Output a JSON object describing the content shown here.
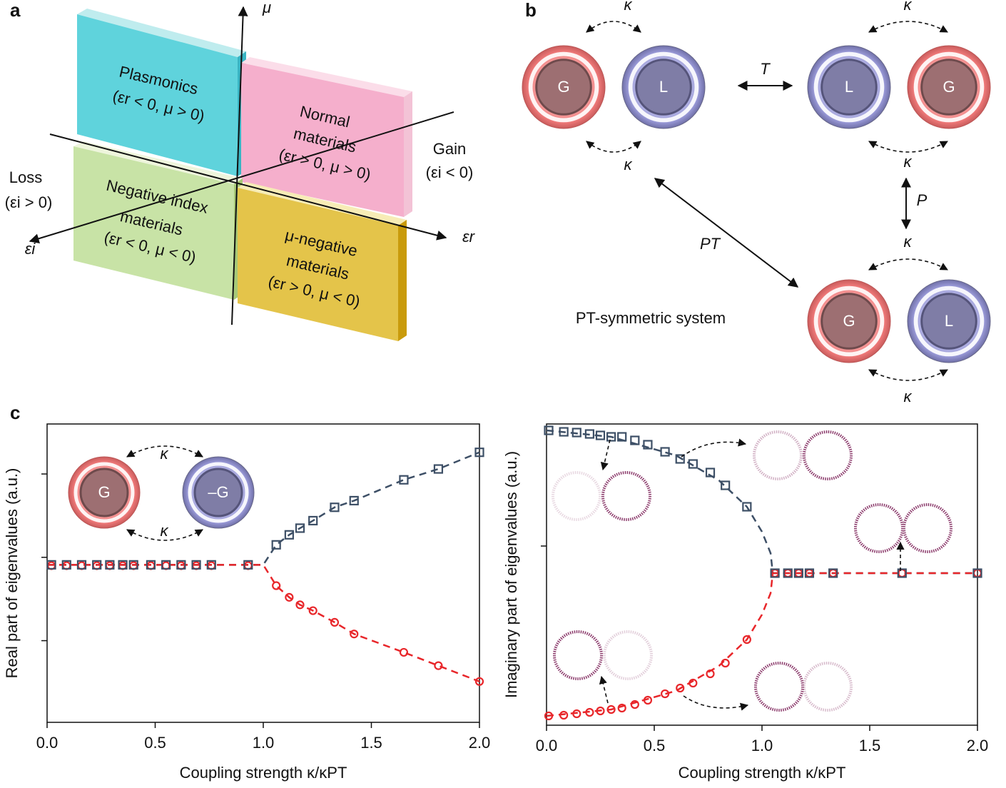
{
  "panel_a": {
    "label": "a",
    "mu_axis": "μ",
    "er_axis": "εr",
    "ei_axis": "εi",
    "loss": [
      "Loss",
      "(εi > 0)"
    ],
    "gain": [
      "Gain",
      "(εi < 0)"
    ],
    "quadrants": [
      {
        "lines": [
          "Plasmonics",
          "(εr < 0, μ > 0)"
        ]
      },
      {
        "lines": [
          "Normal",
          "materials",
          "(εr > 0, μ > 0)"
        ]
      },
      {
        "lines": [
          "Negative index",
          "materials",
          "(εr < 0, μ < 0)"
        ]
      },
      {
        "lines": [
          "μ-negative",
          "materials",
          "(εr > 0, μ < 0)"
        ]
      }
    ]
  },
  "panel_b": {
    "label": "b",
    "resonators": [
      "G",
      "L",
      "L",
      "G",
      "G",
      "L"
    ],
    "couplings": [
      "κ",
      "κ",
      "κ",
      "κ",
      "κ",
      "κ"
    ],
    "operations": [
      "T",
      "P",
      "PT"
    ],
    "caption": "PT-symmetric system"
  },
  "panel_c": {
    "label": "c"
  },
  "chart_data": [
    {
      "type": "scatter",
      "y_label": "Real part of eigenvalues (a.u.)",
      "x_label": "Coupling strength κ/κPT",
      "xlim": [
        0,
        2.0
      ],
      "xticks": [
        {
          "value": 0,
          "label": "0.0"
        },
        0.5,
        {
          "value": 1,
          "label": "1.0"
        },
        1.5,
        {
          "value": 2,
          "label": "2.0"
        }
      ],
      "ylim": [
        -1.98,
        1.6
      ],
      "yticks": [
        -1,
        0,
        1
      ],
      "annotations": [
        "G",
        "–G",
        "κ",
        "κ"
      ],
      "series": [
        {
          "marker": "none",
          "line": "dashed",
          "color": "#3d4f66",
          "x": [
            0,
            0.5,
            1.0,
            1.06,
            1.12,
            1.17,
            1.23,
            1.33,
            1.42,
            1.65,
            1.81,
            2.0
          ],
          "values": [
            -0.09,
            -0.09,
            -0.09,
            0.15,
            0.27,
            0.35,
            0.44,
            0.6,
            0.68,
            0.93,
            1.06,
            1.26
          ]
        },
        {
          "marker": "none",
          "line": "dashed",
          "color": "#e8262a",
          "x": [
            0,
            0.5,
            1.0,
            1.06,
            1.12,
            1.17,
            1.23,
            1.33,
            1.42,
            1.65,
            1.81,
            2.0
          ],
          "values": [
            -0.09,
            -0.09,
            -0.09,
            -0.34,
            -0.48,
            -0.57,
            -0.64,
            -0.78,
            -0.92,
            -1.14,
            -1.3,
            -1.49
          ]
        },
        {
          "marker": "circle",
          "line": "none",
          "color": "#e8262a",
          "x": [
            0.02,
            0.09,
            0.16,
            0.23,
            0.29,
            0.35,
            0.4,
            0.48,
            0.55,
            0.62,
            0.69,
            0.76,
            0.93,
            1.06,
            1.12,
            1.17,
            1.23,
            1.33,
            1.42,
            1.65,
            1.81,
            2.0
          ],
          "values": [
            -0.1,
            -0.1,
            -0.1,
            -0.1,
            -0.1,
            -0.1,
            -0.1,
            -0.1,
            -0.1,
            -0.1,
            -0.1,
            -0.1,
            -0.1,
            -0.34,
            -0.48,
            -0.57,
            -0.64,
            -0.78,
            -0.92,
            -1.14,
            -1.3,
            -1.49
          ]
        },
        {
          "marker": "square",
          "line": "none",
          "color": "#3d4f66",
          "x": [
            0.02,
            0.09,
            0.16,
            0.23,
            0.29,
            0.35,
            0.4,
            0.48,
            0.55,
            0.62,
            0.69,
            0.76,
            0.93,
            1.06,
            1.12,
            1.17,
            1.23,
            1.33,
            1.42,
            1.65,
            1.81,
            2.0
          ],
          "values": [
            -0.09,
            -0.09,
            -0.09,
            -0.09,
            -0.09,
            -0.09,
            -0.09,
            -0.09,
            -0.09,
            -0.09,
            -0.09,
            -0.09,
            -0.09,
            0.15,
            0.27,
            0.35,
            0.44,
            0.6,
            0.68,
            0.93,
            1.06,
            1.26
          ]
        }
      ]
    },
    {
      "type": "scatter",
      "y_label": "Imaginary part of eigenvalues (a.u.)",
      "x_label": "Coupling strength κ/κPT",
      "xlim": [
        0,
        2.0
      ],
      "xticks": [
        {
          "value": 0,
          "label": "0.0"
        },
        0.5,
        {
          "value": 1,
          "label": "1.0"
        },
        1.5,
        {
          "value": 2,
          "label": "2.0"
        }
      ],
      "ylim": [
        -2.51,
        1.71
      ],
      "yticks": [
        0
      ],
      "series": [
        {
          "marker": "none",
          "line": "dashed",
          "color": "#3d4f66",
          "x": [
            0,
            0.3,
            0.6,
            0.8,
            0.93,
            1.0,
            1.04,
            1.05,
            2.0
          ],
          "values": [
            1.62,
            1.53,
            1.27,
            0.92,
            0.55,
            0.2,
            -0.1,
            -0.38,
            -0.38
          ]
        },
        {
          "marker": "none",
          "line": "dashed",
          "color": "#e8262a",
          "x": [
            0,
            0.3,
            0.6,
            0.8,
            0.93,
            1.0,
            1.04,
            1.05,
            2.0
          ],
          "values": [
            -2.38,
            -2.29,
            -2.03,
            -1.68,
            -1.31,
            -0.96,
            -0.66,
            -0.38,
            -0.38
          ]
        },
        {
          "marker": "circle",
          "line": "none",
          "color": "#e8262a",
          "x": [
            0.01,
            0.08,
            0.14,
            0.2,
            0.25,
            0.3,
            0.35,
            0.41,
            0.47,
            0.55,
            0.62,
            0.68,
            0.76,
            0.83,
            0.93,
            1.06,
            1.12,
            1.17,
            1.22,
            1.33,
            1.65,
            2.0
          ],
          "values": [
            -2.38,
            -2.37,
            -2.35,
            -2.33,
            -2.31,
            -2.29,
            -2.27,
            -2.22,
            -2.16,
            -2.07,
            -1.99,
            -1.92,
            -1.79,
            -1.64,
            -1.31,
            -0.38,
            -0.38,
            -0.38,
            -0.38,
            -0.38,
            -0.38,
            -0.38
          ]
        },
        {
          "marker": "square",
          "line": "none",
          "color": "#3d4f66",
          "x": [
            0.01,
            0.08,
            0.14,
            0.2,
            0.25,
            0.3,
            0.35,
            0.41,
            0.47,
            0.55,
            0.62,
            0.68,
            0.76,
            0.83,
            0.93,
            1.06,
            1.12,
            1.17,
            1.22,
            1.33,
            1.65,
            2.0
          ],
          "values": [
            1.62,
            1.6,
            1.59,
            1.57,
            1.55,
            1.53,
            1.53,
            1.48,
            1.42,
            1.32,
            1.22,
            1.15,
            1.03,
            0.85,
            0.55,
            -0.38,
            -0.38,
            -0.38,
            -0.38,
            -0.38,
            -0.38,
            -0.38
          ]
        }
      ]
    }
  ]
}
